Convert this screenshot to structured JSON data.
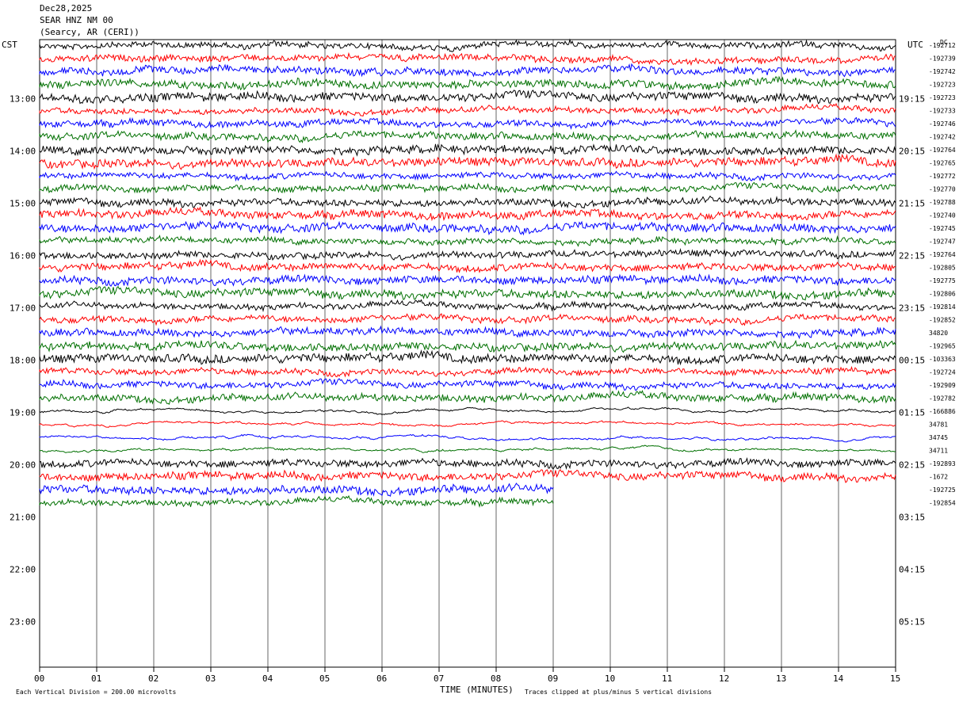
{
  "header": {
    "date": "Dec28,2025",
    "station": "SEAR HNZ NM 00",
    "location": "(Searcy, AR (CERI))"
  },
  "chart_data": {
    "type": "line",
    "left_tz": "CST",
    "right_tz": "UTC",
    "dc_label": "DC",
    "xlabel": "TIME (MINUTES)",
    "xlim": [
      0,
      15
    ],
    "x_ticks": [
      "00",
      "01",
      "02",
      "03",
      "04",
      "05",
      "06",
      "07",
      "08",
      "09",
      "10",
      "11",
      "12",
      "13",
      "14",
      "15"
    ],
    "left_hours": [
      "13:00",
      "14:00",
      "15:00",
      "16:00",
      "17:00",
      "18:00",
      "19:00",
      "20:00",
      "21:00",
      "22:00",
      "23:00"
    ],
    "right_hours": [
      "19:15",
      "20:15",
      "21:15",
      "22:15",
      "23:15",
      "00:15",
      "01:15",
      "02:15",
      "03:15",
      "04:15",
      "05:15"
    ],
    "scale_note": "Each Vertical Division =  200.00 microvolts",
    "clip_note": "Traces clipped at plus/minus 5 vertical divisions",
    "trace_colors": [
      "#000000",
      "#ff0000",
      "#0000ff",
      "#007000"
    ],
    "trace_dc_offsets": [
      "-192712",
      "-192739",
      "-192742",
      "-192723",
      "-192723",
      "-192733",
      "-192746",
      "-192742",
      "-192764",
      "-192765",
      "-192772",
      "-192770",
      "-192788",
      "-192740",
      "-192745",
      "-192747",
      "-192764",
      "-192805",
      "-192775",
      "-192806",
      "-192814",
      "-192852",
      "34820",
      "-192965",
      "-103363",
      "-192724",
      "-192909",
      "-192782",
      "-166886",
      "34781",
      "34745",
      "34711",
      "-192893",
      "-1672",
      "-192725",
      "-192854"
    ],
    "traces_per_hour": 4,
    "minutes_per_trace": 15
  }
}
